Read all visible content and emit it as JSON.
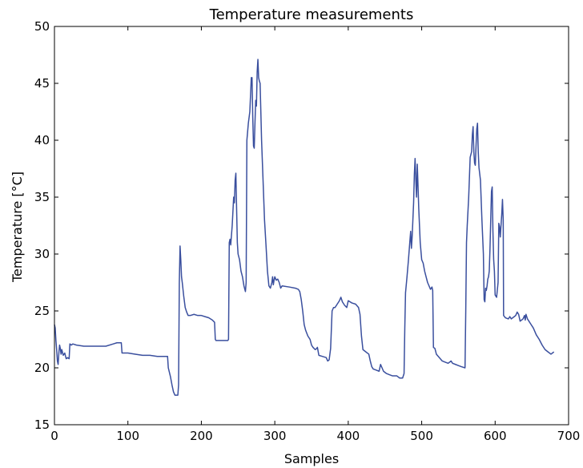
{
  "chart_data": {
    "type": "line",
    "title": "Temperature measurements",
    "xlabel": "Samples",
    "ylabel": "Temperature [°C]",
    "xlim": [
      0,
      700
    ],
    "ylim": [
      15,
      50
    ],
    "xticks": [
      0,
      100,
      200,
      300,
      400,
      500,
      600,
      700
    ],
    "yticks": [
      15,
      20,
      25,
      30,
      35,
      40,
      45,
      50
    ],
    "grid": false,
    "series_color": "#3a4f9e",
    "series": [
      {
        "points": [
          [
            0,
            23.8
          ],
          [
            1,
            23.5
          ],
          [
            2,
            22.4
          ],
          [
            3,
            21.6
          ],
          [
            4,
            20.6
          ],
          [
            5,
            20.3
          ],
          [
            6,
            21.3
          ],
          [
            7,
            22.0
          ],
          [
            8,
            21.7
          ],
          [
            9,
            21.2
          ],
          [
            10,
            21.6
          ],
          [
            12,
            21.1
          ],
          [
            14,
            21.3
          ],
          [
            16,
            20.8
          ],
          [
            18,
            20.9
          ],
          [
            20,
            20.8
          ],
          [
            21,
            22.1
          ],
          [
            23,
            22.0
          ],
          [
            25,
            22.1
          ],
          [
            30,
            22.0
          ],
          [
            40,
            21.9
          ],
          [
            50,
            21.9
          ],
          [
            60,
            21.9
          ],
          [
            70,
            21.9
          ],
          [
            80,
            22.1
          ],
          [
            85,
            22.2
          ],
          [
            91,
            22.2
          ],
          [
            92,
            21.3
          ],
          [
            100,
            21.3
          ],
          [
            110,
            21.2
          ],
          [
            120,
            21.1
          ],
          [
            130,
            21.1
          ],
          [
            140,
            21.0
          ],
          [
            150,
            21.0
          ],
          [
            154,
            21.0
          ],
          [
            155,
            20.0
          ],
          [
            158,
            19.2
          ],
          [
            160,
            18.5
          ],
          [
            162,
            17.9
          ],
          [
            164,
            17.6
          ],
          [
            166,
            17.6
          ],
          [
            168,
            17.6
          ],
          [
            169,
            18.5
          ],
          [
            170,
            27.5
          ],
          [
            171,
            30.7
          ],
          [
            172,
            29.5
          ],
          [
            173,
            28.0
          ],
          [
            174,
            27.5
          ],
          [
            176,
            26.3
          ],
          [
            178,
            25.3
          ],
          [
            180,
            24.9
          ],
          [
            182,
            24.6
          ],
          [
            185,
            24.6
          ],
          [
            190,
            24.7
          ],
          [
            195,
            24.6
          ],
          [
            200,
            24.6
          ],
          [
            205,
            24.5
          ],
          [
            210,
            24.4
          ],
          [
            215,
            24.2
          ],
          [
            218,
            24.0
          ],
          [
            219,
            22.5
          ],
          [
            220,
            22.4
          ],
          [
            225,
            22.4
          ],
          [
            230,
            22.4
          ],
          [
            236,
            22.4
          ],
          [
            237,
            22.5
          ],
          [
            238,
            31.0
          ],
          [
            239,
            31.3
          ],
          [
            240,
            30.8
          ],
          [
            242,
            32.5
          ],
          [
            244,
            35.0
          ],
          [
            245,
            34.5
          ],
          [
            246,
            36.5
          ],
          [
            247,
            37.1
          ],
          [
            248,
            34.0
          ],
          [
            249,
            31.0
          ],
          [
            250,
            30.0
          ],
          [
            252,
            29.5
          ],
          [
            254,
            28.5
          ],
          [
            256,
            28.0
          ],
          [
            258,
            27.2
          ],
          [
            260,
            26.7
          ],
          [
            261,
            27.5
          ],
          [
            262,
            40.0
          ],
          [
            264,
            41.5
          ],
          [
            266,
            42.5
          ],
          [
            268,
            45.5
          ],
          [
            269,
            45.5
          ],
          [
            270,
            42.0
          ],
          [
            271,
            39.5
          ],
          [
            272,
            39.3
          ],
          [
            273,
            41.5
          ],
          [
            274,
            43.5
          ],
          [
            275,
            43.0
          ],
          [
            276,
            46.0
          ],
          [
            277,
            47.1
          ],
          [
            278,
            45.5
          ],
          [
            279,
            45.2
          ],
          [
            280,
            45.0
          ],
          [
            281,
            42.5
          ],
          [
            282,
            40.0
          ],
          [
            284,
            36.5
          ],
          [
            286,
            33.0
          ],
          [
            288,
            30.8
          ],
          [
            290,
            28.5
          ],
          [
            292,
            27.2
          ],
          [
            294,
            27.0
          ],
          [
            296,
            27.5
          ],
          [
            297,
            28.0
          ],
          [
            298,
            27.3
          ],
          [
            299,
            27.7
          ],
          [
            300,
            28.0
          ],
          [
            302,
            27.7
          ],
          [
            304,
            27.8
          ],
          [
            306,
            27.5
          ],
          [
            308,
            27.0
          ],
          [
            310,
            27.2
          ],
          [
            320,
            27.1
          ],
          [
            328,
            27.0
          ],
          [
            332,
            26.9
          ],
          [
            334,
            26.7
          ],
          [
            336,
            26.0
          ],
          [
            338,
            25.0
          ],
          [
            340,
            23.8
          ],
          [
            342,
            23.3
          ],
          [
            345,
            22.8
          ],
          [
            348,
            22.5
          ],
          [
            350,
            22.0
          ],
          [
            352,
            21.8
          ],
          [
            355,
            21.6
          ],
          [
            357,
            21.7
          ],
          [
            358,
            21.8
          ],
          [
            360,
            21.1
          ],
          [
            365,
            21.0
          ],
          [
            370,
            20.9
          ],
          [
            372,
            20.6
          ],
          [
            374,
            20.7
          ],
          [
            376,
            21.7
          ],
          [
            378,
            25.0
          ],
          [
            380,
            25.3
          ],
          [
            382,
            25.3
          ],
          [
            385,
            25.6
          ],
          [
            388,
            25.9
          ],
          [
            390,
            26.2
          ],
          [
            392,
            25.8
          ],
          [
            395,
            25.5
          ],
          [
            398,
            25.3
          ],
          [
            400,
            25.9
          ],
          [
            405,
            25.7
          ],
          [
            410,
            25.6
          ],
          [
            414,
            25.3
          ],
          [
            416,
            24.7
          ],
          [
            418,
            22.8
          ],
          [
            420,
            21.6
          ],
          [
            424,
            21.4
          ],
          [
            428,
            21.2
          ],
          [
            430,
            20.6
          ],
          [
            432,
            20.1
          ],
          [
            434,
            19.9
          ],
          [
            438,
            19.8
          ],
          [
            442,
            19.7
          ],
          [
            444,
            20.3
          ],
          [
            446,
            20.0
          ],
          [
            448,
            19.7
          ],
          [
            452,
            19.5
          ],
          [
            456,
            19.4
          ],
          [
            460,
            19.3
          ],
          [
            466,
            19.3
          ],
          [
            470,
            19.1
          ],
          [
            474,
            19.1
          ],
          [
            476,
            19.5
          ],
          [
            477,
            23.5
          ],
          [
            478,
            26.6
          ],
          [
            480,
            28.0
          ],
          [
            482,
            29.5
          ],
          [
            484,
            31.2
          ],
          [
            485,
            32.0
          ],
          [
            486,
            30.5
          ],
          [
            487,
            31.5
          ],
          [
            488,
            33.0
          ],
          [
            489,
            34.5
          ],
          [
            490,
            37.0
          ],
          [
            491,
            38.4
          ],
          [
            492,
            36.5
          ],
          [
            493,
            35.0
          ],
          [
            494,
            37.9
          ],
          [
            495,
            36.0
          ],
          [
            496,
            34.0
          ],
          [
            498,
            31.0
          ],
          [
            500,
            29.5
          ],
          [
            502,
            29.2
          ],
          [
            504,
            28.5
          ],
          [
            506,
            28.0
          ],
          [
            508,
            27.5
          ],
          [
            510,
            27.2
          ],
          [
            512,
            26.9
          ],
          [
            514,
            27.1
          ],
          [
            515,
            26.8
          ],
          [
            516,
            21.8
          ],
          [
            518,
            21.7
          ],
          [
            520,
            21.2
          ],
          [
            524,
            20.9
          ],
          [
            528,
            20.6
          ],
          [
            532,
            20.5
          ],
          [
            536,
            20.4
          ],
          [
            540,
            20.6
          ],
          [
            542,
            20.4
          ],
          [
            546,
            20.3
          ],
          [
            550,
            20.2
          ],
          [
            554,
            20.1
          ],
          [
            559,
            20.0
          ],
          [
            560,
            25.0
          ],
          [
            561,
            31.0
          ],
          [
            562,
            32.5
          ],
          [
            564,
            35.0
          ],
          [
            566,
            38.5
          ],
          [
            568,
            39.0
          ],
          [
            569,
            40.5
          ],
          [
            570,
            41.2
          ],
          [
            571,
            39.0
          ],
          [
            572,
            38.0
          ],
          [
            573,
            37.8
          ],
          [
            574,
            39.5
          ],
          [
            575,
            41.0
          ],
          [
            576,
            41.5
          ],
          [
            577,
            39.0
          ],
          [
            578,
            37.6
          ],
          [
            580,
            36.5
          ],
          [
            582,
            33.0
          ],
          [
            584,
            30.0
          ],
          [
            585,
            26.0
          ],
          [
            586,
            25.8
          ],
          [
            587,
            27.0
          ],
          [
            588,
            26.8
          ],
          [
            589,
            27.2
          ],
          [
            590,
            27.8
          ],
          [
            591,
            28.0
          ],
          [
            592,
            28.5
          ],
          [
            593,
            30.5
          ],
          [
            594,
            33.0
          ],
          [
            595,
            35.5
          ],
          [
            596,
            35.9
          ],
          [
            597,
            32.0
          ],
          [
            598,
            29.5
          ],
          [
            599,
            28.5
          ],
          [
            600,
            26.4
          ],
          [
            602,
            26.2
          ],
          [
            604,
            27.5
          ],
          [
            605,
            32.7
          ],
          [
            606,
            32.4
          ],
          [
            607,
            31.5
          ],
          [
            608,
            32.5
          ],
          [
            609,
            33.5
          ],
          [
            610,
            34.8
          ],
          [
            611,
            33.0
          ],
          [
            611.5,
            24.6
          ],
          [
            614,
            24.4
          ],
          [
            618,
            24.3
          ],
          [
            620,
            24.5
          ],
          [
            622,
            24.3
          ],
          [
            626,
            24.5
          ],
          [
            628,
            24.6
          ],
          [
            630,
            24.9
          ],
          [
            632,
            24.7
          ],
          [
            634,
            24.1
          ],
          [
            636,
            24.2
          ],
          [
            638,
            24.3
          ],
          [
            640,
            24.6
          ],
          [
            641,
            24.2
          ],
          [
            642,
            24.7
          ],
          [
            644,
            24.3
          ],
          [
            648,
            23.9
          ],
          [
            652,
            23.5
          ],
          [
            656,
            22.9
          ],
          [
            660,
            22.5
          ],
          [
            664,
            22.0
          ],
          [
            668,
            21.6
          ],
          [
            672,
            21.4
          ],
          [
            676,
            21.2
          ],
          [
            680,
            21.4
          ]
        ]
      }
    ]
  }
}
